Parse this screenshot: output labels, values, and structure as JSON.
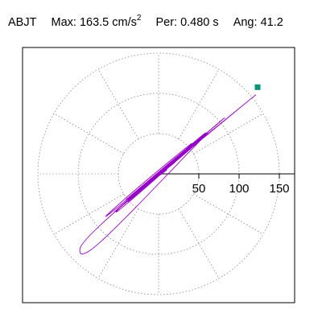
{
  "header": {
    "station": "ABJT",
    "max_label": "Max:",
    "max_value": "163.5 cm/s",
    "max_exponent": "2",
    "per_label": "Per:",
    "per_value": "0.480 s",
    "ang_label": "Ang:",
    "ang_value": "41.2"
  },
  "colors": {
    "trace": "#9900cc",
    "marker": "#009977",
    "grid": "#888888",
    "axis": "#000000"
  },
  "chart_data": {
    "type": "line",
    "subtype": "polar-orbit",
    "title": "ABJT  Max: 163.5 cm/s2  Per: 0.480 s  Ang: 41.2",
    "radial_ticks": [
      50,
      100,
      150
    ],
    "radial_tick_labels": [
      "50",
      "100",
      "150"
    ],
    "ring_values": [
      50,
      100,
      150
    ],
    "spoke_angles_deg": [
      0,
      30,
      60,
      90,
      120,
      150,
      180,
      210,
      240,
      270,
      300,
      330
    ],
    "r_max_visible": 175,
    "peak": {
      "value": 163.5,
      "angle_deg": 41.2
    },
    "grid": true,
    "series": [
      {
        "x": [
          0,
          5,
          -10,
          18,
          -22,
          30,
          -35,
          45,
          -40,
          60,
          -55,
          75,
          -70,
          95,
          -88,
          110,
          -105,
          85,
          -75,
          62,
          -50,
          40,
          -30,
          20,
          -12,
          118,
          123,
          80,
          -95,
          -100,
          -70,
          55,
          65,
          30,
          -42,
          -60,
          15,
          -20,
          8,
          -5,
          100,
          45,
          -85,
          -30,
          70,
          -65,
          25,
          0
        ],
        "y": [
          0,
          3,
          -8,
          14,
          -18,
          25,
          -28,
          40,
          -35,
          50,
          -45,
          65,
          -60,
          80,
          -72,
          95,
          -90,
          70,
          -62,
          50,
          -42,
          30,
          -25,
          12,
          -10,
          96,
          100,
          65,
          -80,
          -105,
          -85,
          45,
          55,
          22,
          -35,
          -55,
          10,
          -18,
          6,
          -4,
          85,
          38,
          -70,
          -20,
          62,
          -58,
          20,
          0
        ]
      }
    ]
  }
}
